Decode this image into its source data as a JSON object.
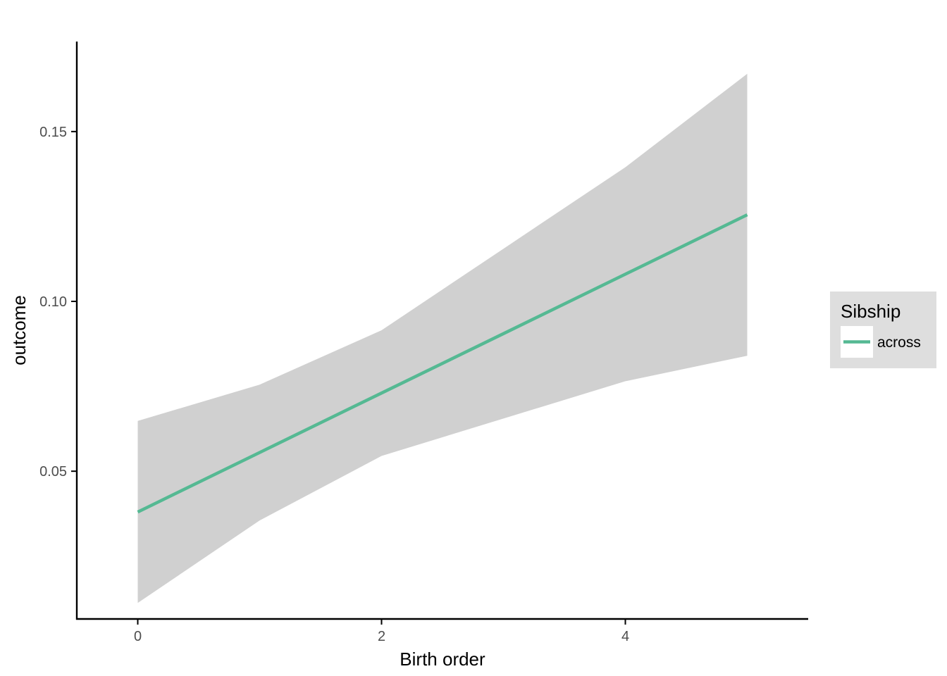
{
  "chart_data": {
    "type": "line",
    "xlabel": "Birth order",
    "ylabel": "outcome",
    "xlim": [
      -0.5,
      5.5
    ],
    "ylim": [
      0.0065,
      0.1765
    ],
    "x_ticks": [
      0,
      2,
      4
    ],
    "y_ticks": [
      0.05,
      0.1,
      0.15
    ],
    "y_tick_labels": [
      "0.05",
      "0.10",
      "0.15"
    ],
    "grid": false,
    "legend": {
      "title": "Sibship",
      "placement": "right"
    },
    "series": [
      {
        "name": "across",
        "color": "#55b993",
        "x": [
          0,
          1,
          2,
          3,
          4,
          5
        ],
        "y": [
          0.038,
          0.0555,
          0.073,
          0.0905,
          0.108,
          0.1255
        ],
        "ci_lower": [
          0.0112,
          0.0355,
          0.0545,
          0.0655,
          0.0765,
          0.084
        ],
        "ci_upper": [
          0.0648,
          0.0755,
          0.0915,
          0.1155,
          0.1395,
          0.167
        ]
      }
    ],
    "ribbon_color": "#d0d0d0"
  }
}
